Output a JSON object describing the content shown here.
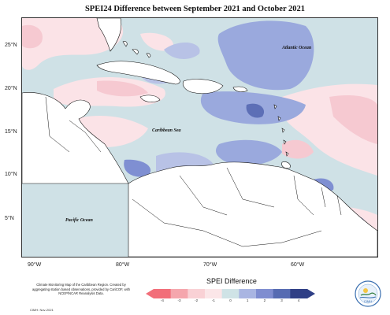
{
  "title": "SPEI24 Difference between September 2021 and October 2021",
  "map": {
    "labels": {
      "atlantic": "Atlantic Ocean",
      "caribbean": "Caribbean Sea",
      "pacific": "Pacific Ocean"
    },
    "lat_ticks": [
      "25°N",
      "20°N",
      "15°N",
      "10°N",
      "5°N"
    ],
    "lon_ticks": [
      "90°W",
      "80°W",
      "70°W",
      "60°W"
    ],
    "colors": {
      "land": "#ffffff",
      "ocean_base": "#cfe1e6",
      "pink_light": "#fbe3e7",
      "pink": "#f6c9d1",
      "blue_mid": "#9aa9dd",
      "blue_strong": "#7f8fd2",
      "blue_dark": "#5d6fb6"
    }
  },
  "legend": {
    "title": "SPEI Difference",
    "ticks": [
      "-4",
      "-3",
      "-2",
      "-1",
      "0",
      "1",
      "2",
      "3",
      "4"
    ],
    "colors": [
      "#f26e79",
      "#f5a6ad",
      "#f9d1d5",
      "#fbe6e8",
      "#cfe3e6",
      "#a9b5e2",
      "#7f8dd0",
      "#566bb2",
      "#2f3f86"
    ]
  },
  "footnote": "Climate Monitoring Map of the Caribbean Region. Created by aggregating station based observations, provided by CariCOF, with NCEP/NCAR Reanalysis Data.",
  "credit": "CIMH: Nov-2021",
  "logo": {
    "text": "CIMH",
    "icon": "cimh-logo-icon"
  }
}
